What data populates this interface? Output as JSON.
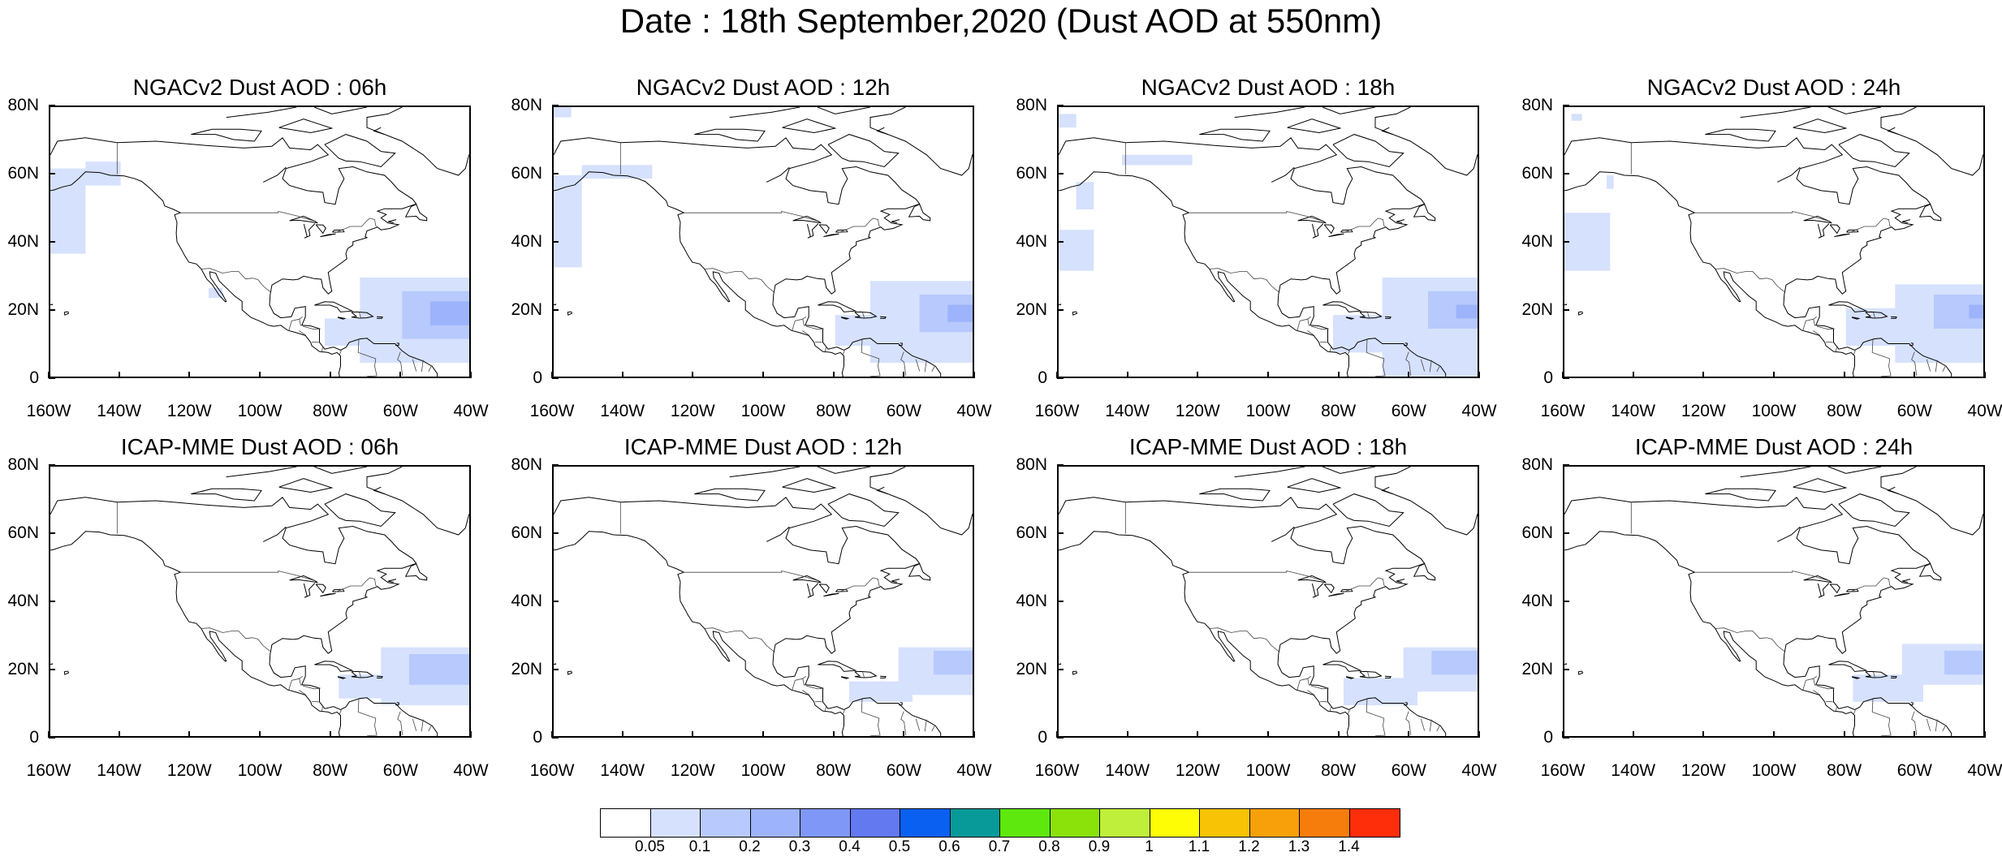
{
  "title": "Date : 18th September,2020 (Dust AOD at 550nm)",
  "chart_data": {
    "type": "heatmap",
    "xlim": [
      -160,
      -40
    ],
    "ylim": [
      0,
      80
    ],
    "xticks": [
      "160W",
      "140W",
      "120W",
      "100W",
      "80W",
      "60W",
      "40W"
    ],
    "yticks": [
      "0",
      "20N",
      "40N",
      "60N",
      "80N"
    ],
    "levels": [
      "0.05",
      "0.1",
      "0.2",
      "0.3",
      "0.4",
      "0.5",
      "0.6",
      "0.7",
      "0.8",
      "0.9",
      "1",
      "1.1",
      "1.2",
      "1.3",
      "1.4"
    ],
    "colors": [
      "#ffffff",
      "#d6e1fd",
      "#b7c9fd",
      "#9db3fb",
      "#7f97f6",
      "#6279f0",
      "#0a60f0",
      "#079a99",
      "#5ee80e",
      "#8be20a",
      "#bfef3a",
      "#fefd05",
      "#f7c304",
      "#f7a009",
      "#f67c0b",
      "#fd2e09"
    ],
    "panels": [
      {
        "title": "NGACv2 Dust AOD : 06h",
        "patches": [
          {
            "lon": [
              -160,
              -150
            ],
            "lat": [
              37,
              62
            ],
            "level": 1
          },
          {
            "lon": [
              -150,
              -140
            ],
            "lat": [
              57,
              64
            ],
            "level": 1
          },
          {
            "lon": [
              -115,
              -111
            ],
            "lat": [
              24,
              27
            ],
            "level": 1
          },
          {
            "lon": [
              -82,
              -65
            ],
            "lat": [
              10,
              18
            ],
            "level": 1
          },
          {
            "lon": [
              -72,
              -40
            ],
            "lat": [
              5,
              30
            ],
            "level": 1
          },
          {
            "lon": [
              -60,
              -40
            ],
            "lat": [
              12,
              26
            ],
            "level": 2
          },
          {
            "lon": [
              -52,
              -40
            ],
            "lat": [
              16,
              23
            ],
            "level": 3
          }
        ]
      },
      {
        "title": "NGACv2 Dust AOD : 12h",
        "patches": [
          {
            "lon": [
              -160,
              -155
            ],
            "lat": [
              77,
              80
            ],
            "level": 1
          },
          {
            "lon": [
              -160,
              -152
            ],
            "lat": [
              33,
              60
            ],
            "level": 1
          },
          {
            "lon": [
              -152,
              -132
            ],
            "lat": [
              59,
              63
            ],
            "level": 1
          },
          {
            "lon": [
              -80,
              -63
            ],
            "lat": [
              10,
              19
            ],
            "level": 1
          },
          {
            "lon": [
              -70,
              -40
            ],
            "lat": [
              5,
              29
            ],
            "level": 1
          },
          {
            "lon": [
              -56,
              -40
            ],
            "lat": [
              14,
              25
            ],
            "level": 2
          },
          {
            "lon": [
              -48,
              -40
            ],
            "lat": [
              17,
              22
            ],
            "level": 3
          }
        ]
      },
      {
        "title": "NGACv2 Dust AOD : 18h",
        "patches": [
          {
            "lon": [
              -160,
              -155
            ],
            "lat": [
              74,
              78
            ],
            "level": 1
          },
          {
            "lon": [
              -142,
              -122
            ],
            "lat": [
              63,
              66
            ],
            "level": 1
          },
          {
            "lon": [
              -155,
              -150
            ],
            "lat": [
              50,
              58
            ],
            "level": 1
          },
          {
            "lon": [
              -160,
              -150
            ],
            "lat": [
              32,
              44
            ],
            "level": 1
          },
          {
            "lon": [
              -82,
              -62
            ],
            "lat": [
              8,
              19
            ],
            "level": 1
          },
          {
            "lon": [
              -68,
              -40
            ],
            "lat": [
              1,
              30
            ],
            "level": 1
          },
          {
            "lon": [
              -55,
              -40
            ],
            "lat": [
              15,
              26
            ],
            "level": 2
          },
          {
            "lon": [
              -47,
              -40
            ],
            "lat": [
              18,
              22
            ],
            "level": 3
          }
        ]
      },
      {
        "title": "NGACv2 Dust AOD : 24h",
        "patches": [
          {
            "lon": [
              -158,
              -155
            ],
            "lat": [
              76,
              78
            ],
            "level": 1
          },
          {
            "lon": [
              -148,
              -146
            ],
            "lat": [
              56,
              60
            ],
            "level": 1
          },
          {
            "lon": [
              -160,
              -147
            ],
            "lat": [
              32,
              49
            ],
            "level": 1
          },
          {
            "lon": [
              -80,
              -62
            ],
            "lat": [
              10,
              21
            ],
            "level": 1
          },
          {
            "lon": [
              -66,
              -40
            ],
            "lat": [
              5,
              28
            ],
            "level": 1
          },
          {
            "lon": [
              -55,
              -40
            ],
            "lat": [
              15,
              25
            ],
            "level": 2
          },
          {
            "lon": [
              -45,
              -40
            ],
            "lat": [
              18,
              22
            ],
            "level": 3
          }
        ]
      },
      {
        "title": "ICAP-MME Dust AOD : 06h",
        "patches": [
          {
            "lon": [
              -78,
              -60
            ],
            "lat": [
              12,
              19
            ],
            "level": 1
          },
          {
            "lon": [
              -66,
              -40
            ],
            "lat": [
              10,
              27
            ],
            "level": 1
          },
          {
            "lon": [
              -58,
              -40
            ],
            "lat": [
              16,
              25
            ],
            "level": 2
          }
        ]
      },
      {
        "title": "ICAP-MME Dust AOD : 12h",
        "patches": [
          {
            "lon": [
              -76,
              -58
            ],
            "lat": [
              11,
              17
            ],
            "level": 1
          },
          {
            "lon": [
              -62,
              -40
            ],
            "lat": [
              13,
              27
            ],
            "level": 1
          },
          {
            "lon": [
              -52,
              -40
            ],
            "lat": [
              19,
              26
            ],
            "level": 2
          }
        ]
      },
      {
        "title": "ICAP-MME Dust AOD : 18h",
        "patches": [
          {
            "lon": [
              -79,
              -58
            ],
            "lat": [
              10,
              18
            ],
            "level": 1
          },
          {
            "lon": [
              -62,
              -40
            ],
            "lat": [
              14,
              27
            ],
            "level": 1
          },
          {
            "lon": [
              -54,
              -40
            ],
            "lat": [
              19,
              26
            ],
            "level": 2
          }
        ]
      },
      {
        "title": "ICAP-MME Dust AOD : 24h",
        "patches": [
          {
            "lon": [
              -78,
              -58
            ],
            "lat": [
              11,
              19
            ],
            "level": 1
          },
          {
            "lon": [
              -64,
              -40
            ],
            "lat": [
              16,
              28
            ],
            "level": 1
          },
          {
            "lon": [
              -52,
              -40
            ],
            "lat": [
              19,
              26
            ],
            "level": 2
          }
        ]
      }
    ]
  }
}
